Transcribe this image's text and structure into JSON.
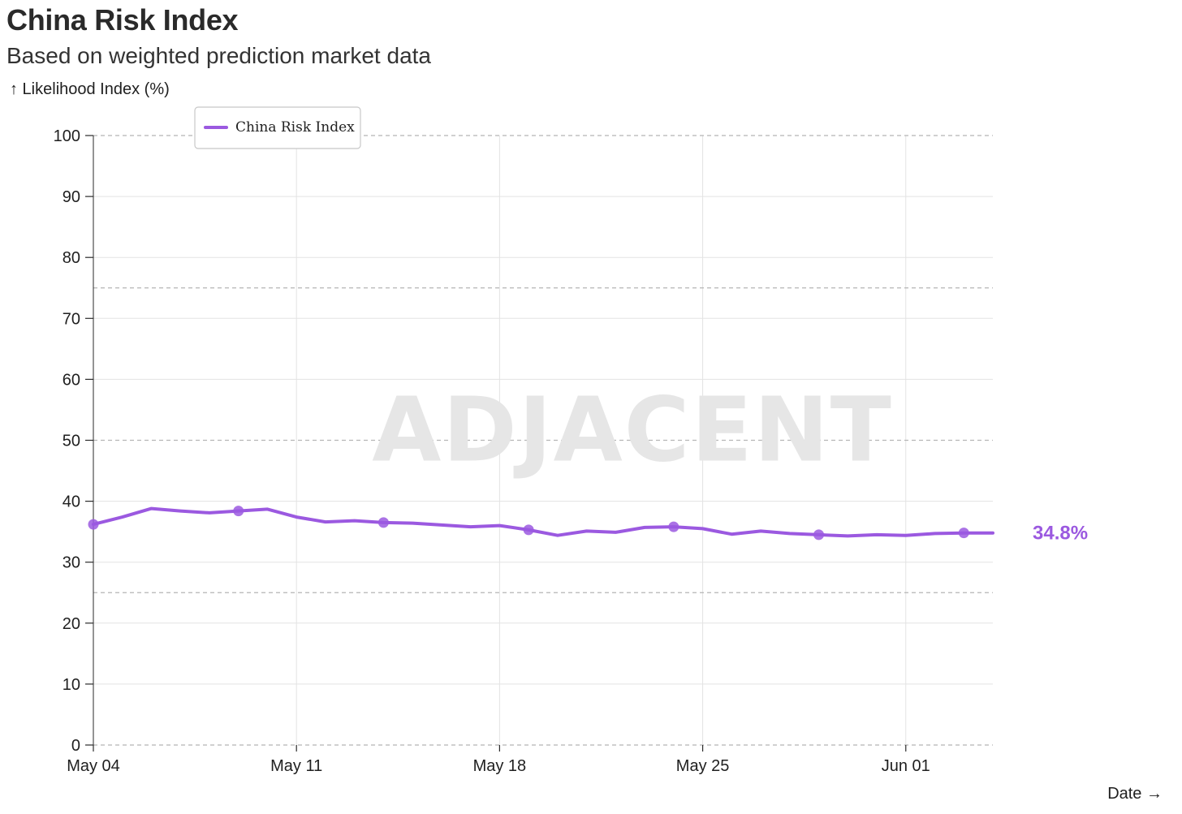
{
  "header": {
    "title": "China Risk Index",
    "subtitle": "Based on weighted prediction market data"
  },
  "watermark": "ADJACENT",
  "colors": {
    "series": "#9b59e0",
    "grid": "#e3e3e3",
    "dashed_grid": "#b5b5b5",
    "axis": "#2a2a2a"
  },
  "chart_data": {
    "type": "line",
    "title": "China Risk Index",
    "subtitle": "Based on weighted prediction market data",
    "ylabel": "↑ Likelihood Index (%)",
    "xlabel": "Date →",
    "ylim": [
      0,
      100
    ],
    "yticks": [
      0,
      10,
      20,
      30,
      40,
      50,
      60,
      70,
      80,
      90,
      100
    ],
    "dashed_y_lines": [
      0,
      25,
      50,
      75,
      100
    ],
    "xlim": [
      "2025-05-04",
      "2025-06-04"
    ],
    "xticks": [
      {
        "date": "2025-05-04",
        "label": "May 04"
      },
      {
        "date": "2025-05-11",
        "label": "May 11"
      },
      {
        "date": "2025-05-18",
        "label": "May 18"
      },
      {
        "date": "2025-05-25",
        "label": "May 25"
      },
      {
        "date": "2025-06-01",
        "label": "Jun 01"
      }
    ],
    "grid": true,
    "legend": {
      "position": "top-left",
      "entries": [
        "China Risk Index"
      ]
    },
    "end_label": "34.8%",
    "series": [
      {
        "name": "China Risk Index",
        "x": [
          "2025-05-04",
          "2025-05-05",
          "2025-05-06",
          "2025-05-07",
          "2025-05-08",
          "2025-05-09",
          "2025-05-10",
          "2025-05-11",
          "2025-05-12",
          "2025-05-13",
          "2025-05-14",
          "2025-05-15",
          "2025-05-16",
          "2025-05-17",
          "2025-05-18",
          "2025-05-19",
          "2025-05-20",
          "2025-05-21",
          "2025-05-22",
          "2025-05-23",
          "2025-05-24",
          "2025-05-25",
          "2025-05-26",
          "2025-05-27",
          "2025-05-28",
          "2025-05-29",
          "2025-05-30",
          "2025-05-31",
          "2025-06-01",
          "2025-06-02",
          "2025-06-03",
          "2025-06-04"
        ],
        "y": [
          36.2,
          37.4,
          38.8,
          38.4,
          38.1,
          38.4,
          38.7,
          37.4,
          36.6,
          36.8,
          36.5,
          36.4,
          36.1,
          35.8,
          36.0,
          35.3,
          34.4,
          35.1,
          34.9,
          35.7,
          35.8,
          35.5,
          34.6,
          35.1,
          34.7,
          34.5,
          34.3,
          34.5,
          34.4,
          34.7,
          34.8,
          34.8
        ],
        "markers": [
          "2025-05-04",
          "2025-05-09",
          "2025-05-14",
          "2025-05-19",
          "2025-05-24",
          "2025-05-29",
          "2025-06-03"
        ]
      }
    ]
  }
}
